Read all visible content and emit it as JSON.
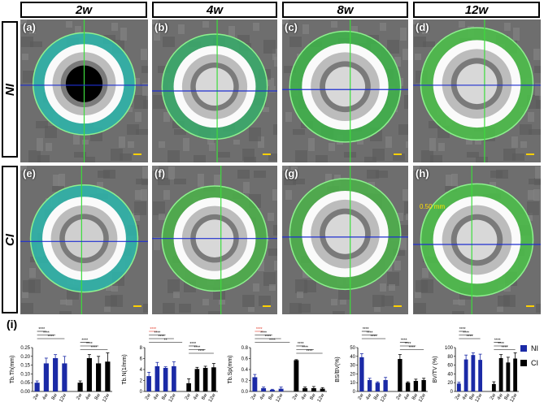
{
  "columns": [
    "2w",
    "4w",
    "8w",
    "12w"
  ],
  "rows": [
    "NI",
    "CI"
  ],
  "panels": [
    {
      "label": "(a)"
    },
    {
      "label": "(b)"
    },
    {
      "label": "(c)"
    },
    {
      "label": "(d)"
    },
    {
      "label": "(e)"
    },
    {
      "label": "(f)"
    },
    {
      "label": "(g)"
    },
    {
      "label": "(h)"
    }
  ],
  "scale_annotation": "0.50 mm",
  "section_label": "(i)",
  "legend": [
    {
      "name": "NI",
      "color": "#1b2aa6"
    },
    {
      "name": "CI",
      "color": "#000000"
    }
  ],
  "chart_data": [
    {
      "type": "bar",
      "ylabel": "Tb.Th(mm)",
      "ylim": [
        0,
        0.25
      ],
      "yticks": [
        "0.00",
        "0.05",
        "0.10",
        "0.15",
        "0.20",
        "0.25"
      ],
      "categories": [
        "2w",
        "4w",
        "8w",
        "12w"
      ],
      "series": [
        {
          "name": "NI",
          "values": [
            0.05,
            0.16,
            0.19,
            0.16
          ],
          "errors": [
            0.01,
            0.03,
            0.02,
            0.04
          ]
        },
        {
          "name": "CI",
          "values": [
            0.05,
            0.19,
            0.16,
            0.17
          ],
          "errors": [
            0.01,
            0.02,
            0.04,
            0.05
          ]
        }
      ],
      "significance": [
        "****",
        "****",
        "****",
        "****",
        "****",
        "****"
      ]
    },
    {
      "type": "bar",
      "ylabel": "Tb.N(1/mm)",
      "ylim": [
        0,
        8
      ],
      "yticks": [
        "0",
        "2",
        "4",
        "6",
        "8"
      ],
      "categories": [
        "2w",
        "4w",
        "8w",
        "12w"
      ],
      "series": [
        {
          "name": "NI",
          "values": [
            2.8,
            4.6,
            4.3,
            4.6
          ],
          "errors": [
            0.7,
            0.7,
            0.2,
            0.8
          ]
        },
        {
          "name": "CI",
          "values": [
            1.5,
            4.1,
            4.3,
            4.4
          ],
          "errors": [
            0.8,
            0.3,
            0.3,
            0.7
          ]
        }
      ],
      "significance": [
        "****",
        "****",
        "****",
        "**",
        "****",
        "****",
        "****"
      ]
    },
    {
      "type": "bar",
      "ylabel": "Tb.Sp(mm)",
      "ylim": [
        0,
        0.8
      ],
      "yticks": [
        "0.0",
        "0.2",
        "0.4",
        "0.6",
        "0.8"
      ],
      "categories": [
        "2w",
        "4w",
        "8w",
        "12w"
      ],
      "series": [
        {
          "name": "NI",
          "values": [
            0.26,
            0.06,
            0.03,
            0.05
          ],
          "errors": [
            0.05,
            0.02,
            0.01,
            0.03
          ]
        },
        {
          "name": "CI",
          "values": [
            0.57,
            0.06,
            0.06,
            0.05
          ],
          "errors": [
            0.01,
            0.02,
            0.03,
            0.02
          ]
        }
      ],
      "significance": [
        "****",
        "****",
        "****",
        "****",
        "****",
        "****",
        "****"
      ]
    },
    {
      "type": "bar",
      "ylabel": "BS/BV(%)",
      "ylim": [
        0,
        50
      ],
      "yticks": [
        "0",
        "10",
        "20",
        "30",
        "40",
        "50"
      ],
      "categories": [
        "2w",
        "4w",
        "8w",
        "12w"
      ],
      "series": [
        {
          "name": "NI",
          "values": [
            39,
            13,
            10,
            13
          ],
          "errors": [
            4,
            2,
            1,
            3
          ]
        },
        {
          "name": "CI",
          "values": [
            37,
            10,
            12,
            13
          ],
          "errors": [
            5,
            1,
            2,
            2
          ]
        }
      ],
      "significance": [
        "****",
        "****",
        "****",
        "****",
        "****",
        "****"
      ]
    },
    {
      "type": "bar",
      "ylabel": "BV/TV (%)",
      "ylim": [
        0,
        100
      ],
      "yticks": [
        "0",
        "20",
        "40",
        "60",
        "80",
        "100"
      ],
      "categories": [
        "2w",
        "4w",
        "8w",
        "12w"
      ],
      "series": [
        {
          "name": "NI",
          "values": [
            18,
            73,
            83,
            72
          ],
          "errors": [
            3,
            10,
            5,
            13
          ]
        },
        {
          "name": "CI",
          "values": [
            17,
            76,
            66,
            75
          ],
          "errors": [
            5,
            8,
            12,
            13
          ]
        }
      ],
      "significance": [
        "****",
        "****",
        "****",
        "****",
        "****",
        "****"
      ]
    }
  ]
}
